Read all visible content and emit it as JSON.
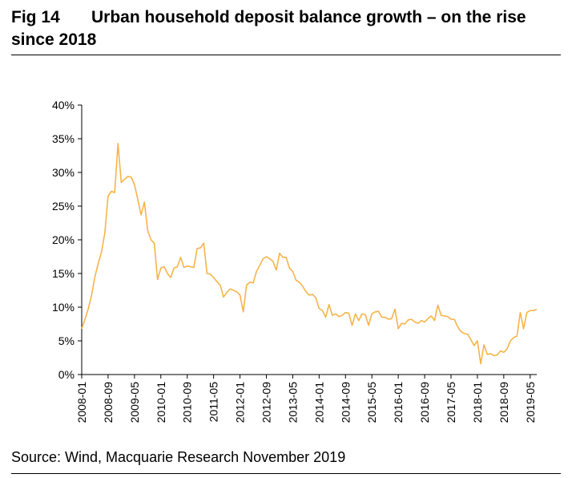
{
  "figure": {
    "label": "Fig 14",
    "title": "Urban household deposit balance growth – on the rise since 2018",
    "source": "Source: Wind, Macquarie Research November 2019"
  },
  "colors": {
    "line": "#F5B44A",
    "axis": "#000000",
    "text": "#000000"
  },
  "chart_data": {
    "type": "line",
    "title": "Urban household deposit balance growth – on the rise since 2018",
    "xlabel": "",
    "ylabel": "",
    "ylim": [
      0,
      0.4
    ],
    "xlim": [
      "2008-01",
      "2019-07"
    ],
    "grid": false,
    "y_ticks": [
      0,
      0.05,
      0.1,
      0.15,
      0.2,
      0.25,
      0.3,
      0.35,
      0.4
    ],
    "y_tick_labels": [
      "0%",
      "5%",
      "10%",
      "15%",
      "20%",
      "25%",
      "30%",
      "35%",
      "40%"
    ],
    "x_tick_labels": [
      "2008-01",
      "2008-09",
      "2009-05",
      "2010-01",
      "2010-09",
      "2011-05",
      "2012-01",
      "2012-09",
      "2013-05",
      "2014-01",
      "2014-09",
      "2015-05",
      "2016-01",
      "2016-09",
      "2017-05",
      "2018-01",
      "2018-09",
      "2019-05"
    ],
    "series": [
      {
        "name": "Urban household deposit balance growth",
        "start": "2008-01",
        "frequency": "monthly",
        "values": [
          0.068,
          0.082,
          0.098,
          0.118,
          0.145,
          0.165,
          0.182,
          0.21,
          0.265,
          0.272,
          0.27,
          0.343,
          0.285,
          0.29,
          0.294,
          0.293,
          0.282,
          0.26,
          0.237,
          0.256,
          0.214,
          0.2,
          0.195,
          0.141,
          0.158,
          0.16,
          0.15,
          0.144,
          0.158,
          0.16,
          0.174,
          0.159,
          0.161,
          0.16,
          0.159,
          0.187,
          0.188,
          0.195,
          0.15,
          0.149,
          0.144,
          0.138,
          0.133,
          0.115,
          0.122,
          0.127,
          0.125,
          0.123,
          0.118,
          0.093,
          0.133,
          0.137,
          0.136,
          0.153,
          0.162,
          0.172,
          0.175,
          0.172,
          0.168,
          0.155,
          0.18,
          0.174,
          0.174,
          0.158,
          0.153,
          0.14,
          0.137,
          0.131,
          0.123,
          0.118,
          0.119,
          0.114,
          0.098,
          0.095,
          0.085,
          0.104,
          0.088,
          0.09,
          0.086,
          0.088,
          0.092,
          0.091,
          0.073,
          0.09,
          0.08,
          0.09,
          0.089,
          0.073,
          0.09,
          0.093,
          0.094,
          0.085,
          0.085,
          0.082,
          0.083,
          0.097,
          0.068,
          0.076,
          0.075,
          0.081,
          0.082,
          0.078,
          0.076,
          0.08,
          0.078,
          0.083,
          0.087,
          0.08,
          0.103,
          0.088,
          0.087,
          0.086,
          0.082,
          0.082,
          0.071,
          0.064,
          0.061,
          0.06,
          0.052,
          0.043,
          0.05,
          0.016,
          0.044,
          0.03,
          0.031,
          0.028,
          0.029,
          0.035,
          0.033,
          0.038,
          0.05,
          0.055,
          0.057,
          0.092,
          0.068,
          0.092,
          0.095,
          0.095,
          0.097
        ]
      }
    ]
  }
}
